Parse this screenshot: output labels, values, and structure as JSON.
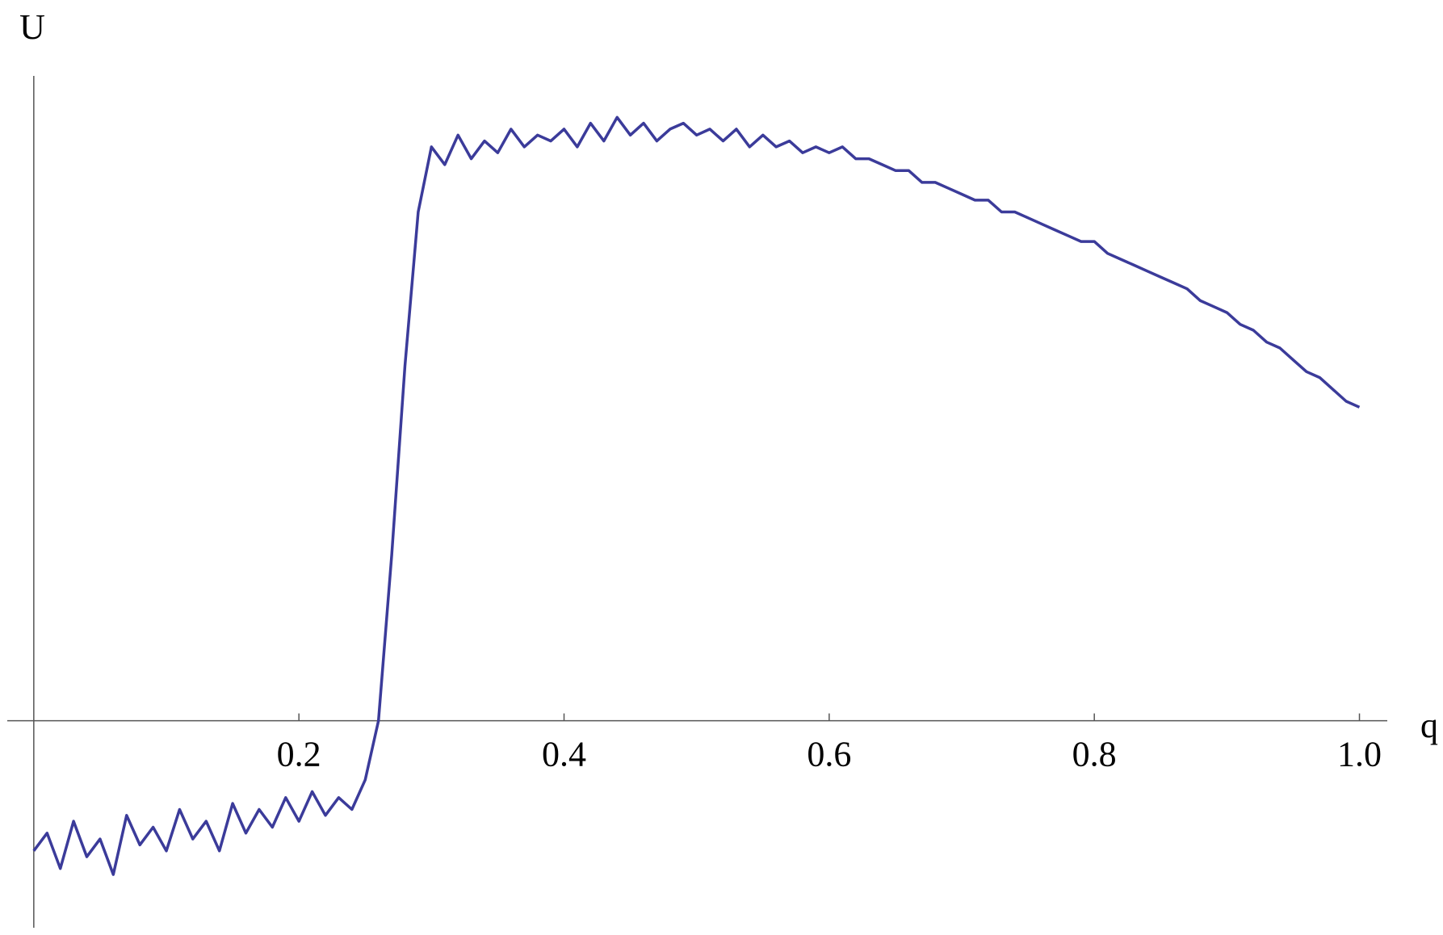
{
  "chart_data": {
    "type": "line",
    "xlabel": "q",
    "ylabel": "U",
    "color": "#3b3b9a",
    "x": [
      0,
      0.01,
      0.02,
      0.03,
      0.04,
      0.05,
      0.06,
      0.07,
      0.08,
      0.09,
      0.1,
      0.11,
      0.12,
      0.13,
      0.14,
      0.15,
      0.16,
      0.17,
      0.18,
      0.19,
      0.2,
      0.21,
      0.22,
      0.23,
      0.24,
      0.25,
      0.26,
      0.27,
      0.28,
      0.29,
      0.3,
      0.31,
      0.32,
      0.33,
      0.34,
      0.35,
      0.36,
      0.37,
      0.38,
      0.39,
      0.4,
      0.41,
      0.42,
      0.43,
      0.44,
      0.45,
      0.46,
      0.47,
      0.48,
      0.49,
      0.5,
      0.51,
      0.52,
      0.53,
      0.54,
      0.55,
      0.56,
      0.57,
      0.58,
      0.59,
      0.6,
      0.61,
      0.62,
      0.63,
      0.64,
      0.65,
      0.66,
      0.67,
      0.68,
      0.69,
      0.7,
      0.71,
      0.72,
      0.73,
      0.74,
      0.75,
      0.76,
      0.77,
      0.78,
      0.79,
      0.8,
      0.81,
      0.82,
      0.83,
      0.84,
      0.85,
      0.86,
      0.87,
      0.88,
      0.89,
      0.9,
      0.91,
      0.92,
      0.93,
      0.94,
      0.95,
      0.96,
      0.97,
      0.98,
      0.99,
      1
    ],
    "values": [
      -0.22,
      -0.19,
      -0.25,
      -0.17,
      -0.23,
      -0.2,
      -0.26,
      -0.16,
      -0.21,
      -0.18,
      -0.22,
      -0.15,
      -0.2,
      -0.17,
      -0.22,
      -0.14,
      -0.19,
      -0.15,
      -0.18,
      -0.13,
      -0.17,
      -0.12,
      -0.16,
      -0.13,
      -0.15,
      -0.1,
      0,
      0.28,
      0.6,
      0.86,
      0.97,
      0.94,
      0.99,
      0.95,
      0.98,
      0.96,
      1,
      0.97,
      0.99,
      0.98,
      1,
      0.97,
      1.01,
      0.98,
      1.02,
      0.99,
      1.01,
      0.98,
      1,
      1.01,
      0.99,
      1,
      0.98,
      1,
      0.97,
      0.99,
      0.97,
      0.98,
      0.96,
      0.97,
      0.96,
      0.97,
      0.95,
      0.95,
      0.94,
      0.93,
      0.93,
      0.91,
      0.91,
      0.9,
      0.89,
      0.88,
      0.88,
      0.86,
      0.86,
      0.85,
      0.84,
      0.83,
      0.82,
      0.81,
      0.81,
      0.79,
      0.78,
      0.77,
      0.76,
      0.75,
      0.74,
      0.73,
      0.71,
      0.7,
      0.69,
      0.67,
      0.66,
      0.64,
      0.63,
      0.61,
      0.59,
      0.58,
      0.56,
      0.54,
      0.53
    ],
    "xlim": [
      -0.02,
      1.021
    ],
    "ylim": [
      -0.35,
      1.09
    ],
    "xticks": [
      0.2,
      0.4,
      0.6,
      0.8,
      {
        "value": 1,
        "label": "1.0"
      }
    ]
  }
}
